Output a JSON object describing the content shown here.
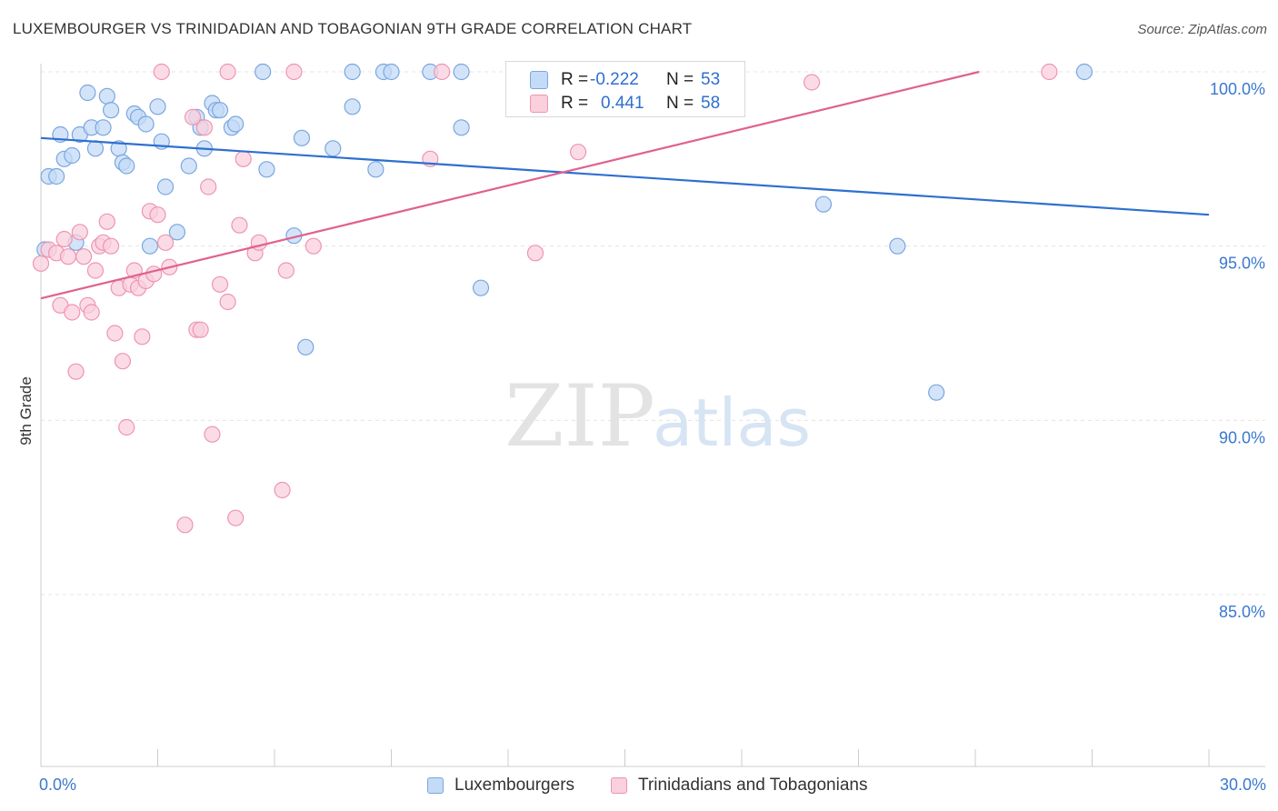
{
  "title": "LUXEMBOURGER VS TRINIDADIAN AND TOBAGONIAN 9TH GRADE CORRELATION CHART",
  "source": "Source: ZipAtlas.com",
  "watermark": {
    "zip": "ZIP",
    "atlas": "atlas"
  },
  "stats": [
    {
      "r_label": "R =",
      "r_value": "-0.222",
      "n_label": "N =",
      "n_value": "53",
      "color": "#aac8f0",
      "border": "#7aa6e0",
      "text_color": "#2f6fd0"
    },
    {
      "r_label": "R =",
      "r_value": "0.441",
      "n_label": "N =",
      "n_value": "58",
      "color": "#f7bfd0",
      "border": "#ee95b0",
      "text_color": "#2f6fd0"
    }
  ],
  "legend": [
    {
      "label": "Luxembourgers",
      "color": "#c4dbf7",
      "border": "#7aa6e0"
    },
    {
      "label": "Trinidadians and Tobagonians",
      "color": "#fad0dd",
      "border": "#ee95b0"
    }
  ],
  "chart_data": {
    "type": "scatter",
    "title": "LUXEMBOURGER VS TRINIDADIAN AND TOBAGONIAN 9TH GRADE CORRELATION CHART",
    "xlabel": "",
    "ylabel": "9th Grade",
    "xlim": [
      0,
      30
    ],
    "ylim": [
      80.5,
      100.4
    ],
    "x_tick_labels": [
      "0.0%",
      "30.0%"
    ],
    "y_ticks": [
      100,
      95,
      90,
      85
    ],
    "y_tick_labels": [
      "100.0%",
      "95.0%",
      "90.0%",
      "85.0%"
    ],
    "grid": true,
    "legend_position": "bottom",
    "series": [
      {
        "name": "Luxembourgers",
        "color": "#7aa6e0",
        "fill": "#c4dbf7",
        "line_color": "#2f6fd0",
        "trend": {
          "x": [
            0,
            30
          ],
          "y": [
            98.1,
            95.9
          ]
        },
        "points": [
          [
            0.1,
            94.9
          ],
          [
            0.2,
            97.0
          ],
          [
            0.4,
            97.0
          ],
          [
            0.5,
            98.2
          ],
          [
            0.6,
            97.5
          ],
          [
            0.8,
            97.6
          ],
          [
            0.9,
            95.1
          ],
          [
            1.0,
            98.2
          ],
          [
            1.2,
            99.4
          ],
          [
            1.3,
            98.4
          ],
          [
            1.4,
            97.8
          ],
          [
            1.6,
            98.4
          ],
          [
            1.7,
            99.3
          ],
          [
            1.8,
            98.9
          ],
          [
            2.0,
            97.8
          ],
          [
            2.1,
            97.4
          ],
          [
            2.2,
            97.3
          ],
          [
            2.4,
            98.8
          ],
          [
            2.5,
            98.7
          ],
          [
            2.7,
            98.5
          ],
          [
            2.8,
            95.0
          ],
          [
            3.0,
            99.0
          ],
          [
            3.1,
            98.0
          ],
          [
            3.2,
            96.7
          ],
          [
            3.5,
            95.4
          ],
          [
            3.8,
            97.3
          ],
          [
            4.0,
            98.7
          ],
          [
            4.1,
            98.4
          ],
          [
            4.2,
            97.8
          ],
          [
            4.4,
            99.1
          ],
          [
            4.5,
            98.9
          ],
          [
            4.6,
            98.9
          ],
          [
            4.9,
            98.4
          ],
          [
            5.0,
            98.5
          ],
          [
            5.7,
            100.0
          ],
          [
            5.8,
            97.2
          ],
          [
            6.5,
            95.3
          ],
          [
            6.7,
            98.1
          ],
          [
            6.8,
            92.1
          ],
          [
            7.5,
            97.8
          ],
          [
            8.0,
            100.0
          ],
          [
            8.0,
            99.0
          ],
          [
            8.6,
            97.2
          ],
          [
            8.8,
            100.0
          ],
          [
            9.0,
            100.0
          ],
          [
            10.0,
            100.0
          ],
          [
            10.8,
            98.4
          ],
          [
            10.8,
            100.0
          ],
          [
            11.3,
            93.8
          ],
          [
            20.1,
            96.2
          ],
          [
            22.0,
            95.0
          ],
          [
            23.0,
            90.8
          ],
          [
            26.8,
            100.0
          ]
        ]
      },
      {
        "name": "Trinidadians and Tobagonians",
        "color": "#ee95b0",
        "fill": "#fad0dd",
        "line_color": "#e06090",
        "trend": {
          "x": [
            0,
            24.1
          ],
          "y": [
            93.5,
            100.0
          ]
        },
        "points": [
          [
            0.0,
            94.5
          ],
          [
            0.2,
            94.9
          ],
          [
            0.4,
            94.8
          ],
          [
            0.5,
            93.3
          ],
          [
            0.6,
            95.2
          ],
          [
            0.7,
            94.7
          ],
          [
            0.8,
            93.1
          ],
          [
            0.9,
            91.4
          ],
          [
            1.0,
            95.4
          ],
          [
            1.1,
            94.7
          ],
          [
            1.2,
            93.3
          ],
          [
            1.3,
            93.1
          ],
          [
            1.4,
            94.3
          ],
          [
            1.5,
            95.0
          ],
          [
            1.6,
            95.1
          ],
          [
            1.7,
            95.7
          ],
          [
            1.8,
            95.0
          ],
          [
            1.9,
            92.5
          ],
          [
            2.0,
            93.8
          ],
          [
            2.1,
            91.7
          ],
          [
            2.2,
            89.8
          ],
          [
            2.3,
            93.9
          ],
          [
            2.4,
            94.3
          ],
          [
            2.5,
            93.8
          ],
          [
            2.6,
            92.4
          ],
          [
            2.7,
            94.0
          ],
          [
            2.8,
            96.0
          ],
          [
            2.9,
            94.2
          ],
          [
            3.0,
            95.9
          ],
          [
            3.1,
            100.0
          ],
          [
            3.2,
            95.1
          ],
          [
            3.3,
            94.4
          ],
          [
            3.7,
            87.0
          ],
          [
            3.9,
            98.7
          ],
          [
            4.0,
            92.6
          ],
          [
            4.1,
            92.6
          ],
          [
            4.2,
            98.4
          ],
          [
            4.3,
            96.7
          ],
          [
            4.4,
            89.6
          ],
          [
            4.6,
            93.9
          ],
          [
            4.8,
            93.4
          ],
          [
            4.8,
            100.0
          ],
          [
            5.0,
            87.2
          ],
          [
            5.1,
            95.6
          ],
          [
            5.2,
            97.5
          ],
          [
            5.5,
            94.8
          ],
          [
            5.6,
            95.1
          ],
          [
            6.2,
            88.0
          ],
          [
            6.3,
            94.3
          ],
          [
            6.5,
            100.0
          ],
          [
            7.0,
            95.0
          ],
          [
            10.0,
            97.5
          ],
          [
            10.3,
            100.0
          ],
          [
            12.7,
            94.8
          ],
          [
            13.5,
            99.1
          ],
          [
            13.8,
            97.7
          ],
          [
            19.8,
            99.7
          ],
          [
            25.9,
            100.0
          ]
        ]
      }
    ]
  }
}
